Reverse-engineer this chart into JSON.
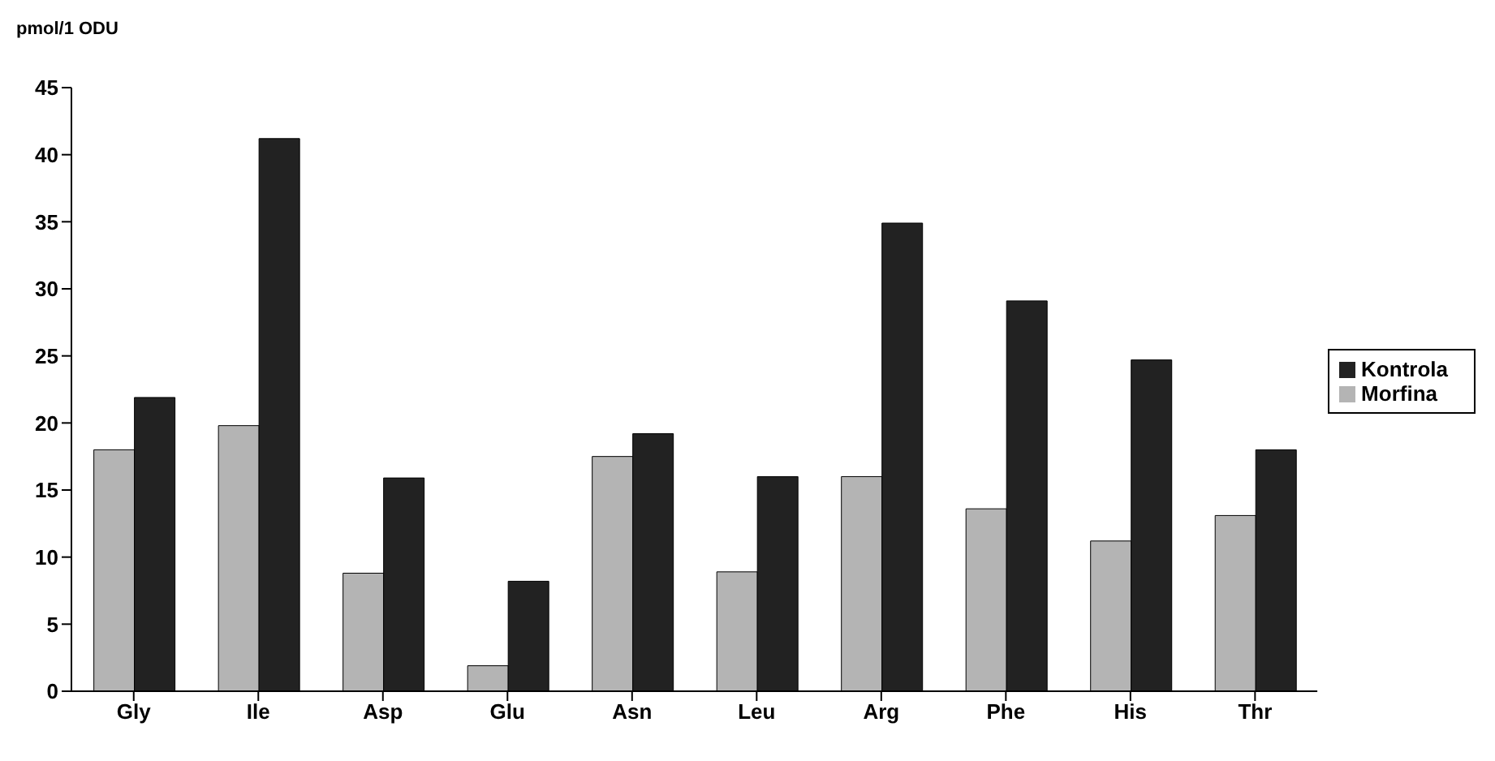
{
  "chart_data": {
    "type": "bar",
    "ylabel": "pmol/1 ODU",
    "categories": [
      "Gly",
      "Ile",
      "Asp",
      "Glu",
      "Asn",
      "Leu",
      "Arg",
      "Phe",
      "His",
      "Thr"
    ],
    "series": [
      {
        "name": "Morfina",
        "color": "#b4b4b4",
        "values": [
          18,
          19.8,
          8.8,
          1.9,
          17.5,
          8.9,
          16,
          13.6,
          11.2,
          13.1
        ]
      },
      {
        "name": "Kontrola",
        "color": "#222222",
        "values": [
          21.9,
          41.2,
          15.9,
          8.2,
          19.2,
          16,
          34.9,
          29.1,
          24.7,
          18
        ]
      }
    ],
    "ylim": [
      0,
      45
    ],
    "yticks": [
      0,
      5,
      10,
      15,
      20,
      25,
      30,
      35,
      40,
      45
    ],
    "grid": false,
    "legend": "right"
  }
}
